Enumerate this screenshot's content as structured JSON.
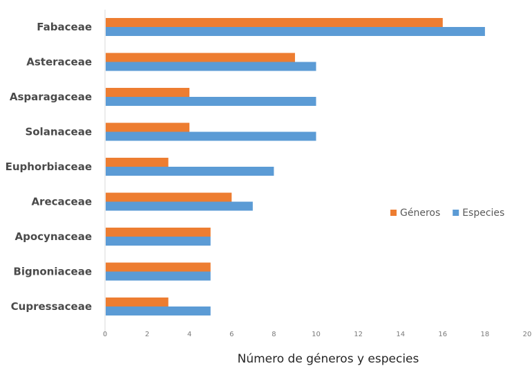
{
  "chart_data": {
    "type": "bar",
    "orientation": "horizontal",
    "categories": [
      "Fabaceae",
      "Asteraceae",
      "Asparagaceae",
      "Solanaceae",
      "Euphorbiaceae",
      "Arecaceae",
      "Apocynaceae",
      "Bignoniaceae",
      "Cupressaceae"
    ],
    "series": [
      {
        "name": "Géneros",
        "values": [
          16,
          9,
          4,
          4,
          3,
          6,
          5,
          5,
          3
        ],
        "color": "#ED7D31"
      },
      {
        "name": "Especies",
        "values": [
          18,
          10,
          10,
          10,
          8,
          7,
          5,
          5,
          5
        ],
        "color": "#5B9BD5"
      }
    ],
    "title": "",
    "xlabel": "Número de géneros y especies",
    "ylabel": "",
    "xlim": [
      0,
      20
    ],
    "xticks": [
      "0",
      "2",
      "4",
      "6",
      "8",
      "10",
      "12",
      "14",
      "16",
      "18",
      "20"
    ],
    "grid": false,
    "legend_position": "right"
  }
}
